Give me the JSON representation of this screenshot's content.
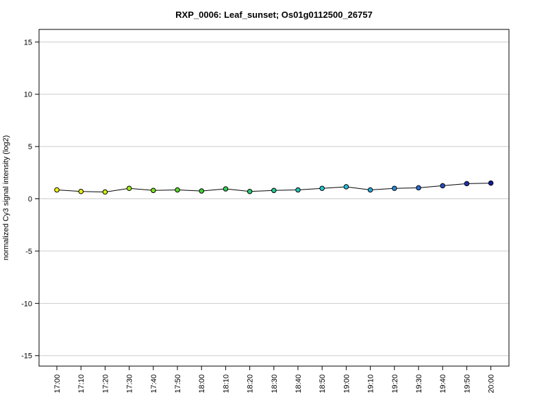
{
  "chart_data": {
    "type": "line",
    "title": "RXP_0006: Leaf_sunset; Os01g0112500_26757",
    "xlabel": "",
    "ylabel": "normalized Cy3 signal intensity (log2)",
    "categories": [
      "17:00",
      "17:10",
      "17:20",
      "17:30",
      "17:40",
      "17:50",
      "18:00",
      "18:10",
      "18:20",
      "18:30",
      "18:40",
      "18:50",
      "19:00",
      "19:10",
      "19:20",
      "19:30",
      "19:40",
      "19:50",
      "20:00"
    ],
    "values": [
      0.85,
      0.7,
      0.65,
      1.0,
      0.8,
      0.85,
      0.75,
      0.95,
      0.7,
      0.8,
      0.85,
      1.0,
      1.15,
      0.85,
      1.0,
      1.05,
      1.25,
      1.45,
      1.5
    ],
    "point_colors": [
      "#f2f20c",
      "#e8f00f",
      "#c8ee12",
      "#9eea16",
      "#78e41a",
      "#55dc28",
      "#3cd43a",
      "#2fd055",
      "#28cc75",
      "#24c895",
      "#22c4b2",
      "#25c4cc",
      "#28c0dc",
      "#2aa8dc",
      "#2a8ad6",
      "#2a6cce",
      "#2450c2",
      "#1c32b4",
      "#141ca0"
    ],
    "ylim": [
      -16,
      16.2
    ],
    "yticks": [
      -15,
      -10,
      -5,
      0,
      5,
      10,
      15
    ],
    "grid": true
  }
}
